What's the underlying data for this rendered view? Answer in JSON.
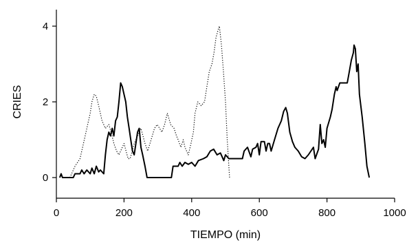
{
  "chart_data": {
    "type": "line",
    "title": "",
    "xlabel": "TIEMPO (min)",
    "ylabel": "CRIES",
    "xlim": [
      0,
      1000
    ],
    "ylim": [
      -0.55,
      4.4
    ],
    "xticks": [
      "0",
      "200",
      "400",
      "600",
      "800",
      "1000"
    ],
    "yticks": [
      "0",
      "2",
      "4"
    ],
    "grid": false,
    "legend": "none",
    "series": [
      {
        "style": "solid",
        "color": "#000000",
        "points": [
          [
            10,
            0
          ],
          [
            14,
            0.1
          ],
          [
            18,
            0
          ],
          [
            50,
            0
          ],
          [
            55,
            0.1
          ],
          [
            70,
            0.1
          ],
          [
            75,
            0.2
          ],
          [
            82,
            0.1
          ],
          [
            90,
            0.2
          ],
          [
            100,
            0.1
          ],
          [
            105,
            0.25
          ],
          [
            112,
            0.1
          ],
          [
            118,
            0.3
          ],
          [
            125,
            0.15
          ],
          [
            130,
            0.2
          ],
          [
            140,
            0.1
          ],
          [
            145,
            0.6
          ],
          [
            150,
            1.0
          ],
          [
            155,
            1.2
          ],
          [
            160,
            1.1
          ],
          [
            165,
            1.3
          ],
          [
            170,
            1.1
          ],
          [
            175,
            1.5
          ],
          [
            180,
            1.6
          ],
          [
            185,
            2.0
          ],
          [
            190,
            2.5
          ],
          [
            195,
            2.4
          ],
          [
            200,
            2.2
          ],
          [
            205,
            2.0
          ],
          [
            210,
            1.6
          ],
          [
            215,
            1.3
          ],
          [
            220,
            1.0
          ],
          [
            225,
            0.7
          ],
          [
            230,
            0.6
          ],
          [
            240,
            1.2
          ],
          [
            245,
            1.3
          ],
          [
            250,
            0.8
          ],
          [
            255,
            0.6
          ],
          [
            262,
            0.3
          ],
          [
            268,
            0
          ],
          [
            340,
            0
          ],
          [
            345,
            0.3
          ],
          [
            360,
            0.3
          ],
          [
            365,
            0.4
          ],
          [
            372,
            0.3
          ],
          [
            380,
            0.4
          ],
          [
            390,
            0.35
          ],
          [
            400,
            0.4
          ],
          [
            410,
            0.3
          ],
          [
            420,
            0.45
          ],
          [
            435,
            0.5
          ],
          [
            445,
            0.55
          ],
          [
            455,
            0.7
          ],
          [
            465,
            0.75
          ],
          [
            475,
            0.6
          ],
          [
            485,
            0.65
          ],
          [
            490,
            0.55
          ],
          [
            495,
            0.45
          ],
          [
            500,
            0.6
          ],
          [
            510,
            0.5
          ],
          [
            550,
            0.5
          ],
          [
            555,
            0.7
          ],
          [
            565,
            0.8
          ],
          [
            575,
            0.55
          ],
          [
            580,
            0.75
          ],
          [
            590,
            0.8
          ],
          [
            595,
            0.9
          ],
          [
            600,
            0.6
          ],
          [
            605,
            0.95
          ],
          [
            615,
            0.95
          ],
          [
            620,
            0.7
          ],
          [
            625,
            0.9
          ],
          [
            630,
            0.9
          ],
          [
            635,
            0.7
          ],
          [
            645,
            1.0
          ],
          [
            655,
            1.3
          ],
          [
            665,
            1.5
          ],
          [
            672,
            1.75
          ],
          [
            678,
            1.85
          ],
          [
            683,
            1.7
          ],
          [
            690,
            1.2
          ],
          [
            698,
            0.95
          ],
          [
            705,
            0.8
          ],
          [
            715,
            0.7
          ],
          [
            725,
            0.55
          ],
          [
            735,
            0.5
          ],
          [
            745,
            0.6
          ],
          [
            760,
            0.8
          ],
          [
            765,
            0.5
          ],
          [
            775,
            0.75
          ],
          [
            780,
            1.4
          ],
          [
            785,
            0.9
          ],
          [
            790,
            1.0
          ],
          [
            795,
            0.8
          ],
          [
            800,
            1.3
          ],
          [
            810,
            1.6
          ],
          [
            815,
            1.8
          ],
          [
            822,
            2.2
          ],
          [
            827,
            2.4
          ],
          [
            830,
            2.3
          ],
          [
            838,
            2.5
          ],
          [
            860,
            2.5
          ],
          [
            866,
            2.8
          ],
          [
            872,
            3.1
          ],
          [
            878,
            3.3
          ],
          [
            880,
            3.5
          ],
          [
            884,
            3.4
          ],
          [
            888,
            2.8
          ],
          [
            892,
            3.0
          ],
          [
            896,
            2.2
          ],
          [
            904,
            1.6
          ],
          [
            912,
            0.9
          ],
          [
            918,
            0.3
          ],
          [
            925,
            0
          ]
        ]
      },
      {
        "style": "dotted",
        "color": "#000000",
        "points": [
          [
            40,
            0
          ],
          [
            55,
            0.3
          ],
          [
            70,
            0.5
          ],
          [
            80,
            0.9
          ],
          [
            90,
            1.3
          ],
          [
            100,
            1.7
          ],
          [
            105,
            2.0
          ],
          [
            112,
            2.2
          ],
          [
            118,
            2.15
          ],
          [
            125,
            1.9
          ],
          [
            135,
            1.5
          ],
          [
            145,
            1.3
          ],
          [
            155,
            1.4
          ],
          [
            162,
            1.2
          ],
          [
            170,
            0.9
          ],
          [
            178,
            0.7
          ],
          [
            185,
            0.6
          ],
          [
            195,
            0.8
          ],
          [
            200,
            0.9
          ],
          [
            212,
            0.5
          ],
          [
            218,
            0.5
          ],
          [
            230,
            0.9
          ],
          [
            240,
            1.1
          ],
          [
            250,
            1.3
          ],
          [
            262,
            0.9
          ],
          [
            270,
            0.7
          ],
          [
            280,
            1.0
          ],
          [
            290,
            1.3
          ],
          [
            298,
            1.4
          ],
          [
            305,
            1.3
          ],
          [
            312,
            1.2
          ],
          [
            320,
            1.4
          ],
          [
            328,
            1.7
          ],
          [
            338,
            1.4
          ],
          [
            348,
            1.3
          ],
          [
            355,
            1.1
          ],
          [
            360,
            1.0
          ],
          [
            368,
            0.8
          ],
          [
            375,
            1.0
          ],
          [
            380,
            0.8
          ],
          [
            390,
            0.6
          ],
          [
            398,
            0.9
          ],
          [
            405,
            1.2
          ],
          [
            410,
            1.7
          ],
          [
            418,
            2.0
          ],
          [
            428,
            1.9
          ],
          [
            438,
            2.0
          ],
          [
            445,
            2.4
          ],
          [
            452,
            2.8
          ],
          [
            460,
            3.0
          ],
          [
            466,
            3.3
          ],
          [
            472,
            3.7
          ],
          [
            478,
            3.9
          ],
          [
            482,
            4.0
          ],
          [
            488,
            3.5
          ],
          [
            494,
            2.8
          ],
          [
            500,
            2.0
          ],
          [
            505,
            1.0
          ],
          [
            512,
            0
          ]
        ]
      }
    ]
  }
}
